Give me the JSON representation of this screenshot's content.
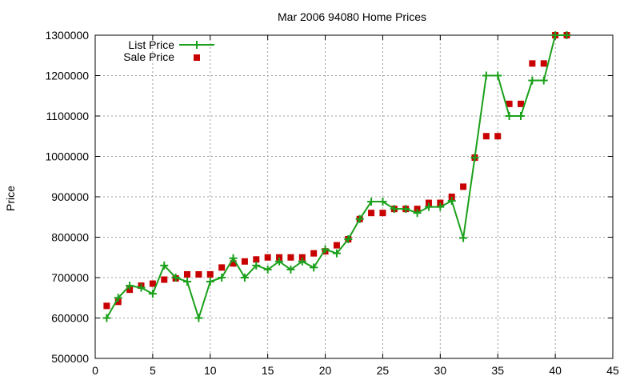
{
  "chart_data": {
    "type": "line",
    "title": "Mar 2006 94080 Home Prices",
    "xlabel": "",
    "ylabel": "Price",
    "xlim": [
      0,
      45
    ],
    "ylim": [
      500000,
      1300000
    ],
    "x_ticks": [
      "0",
      "5",
      "10",
      "15",
      "20",
      "25",
      "30",
      "35",
      "40",
      "45"
    ],
    "y_ticks": [
      "500000",
      "600000",
      "700000",
      "800000",
      "900000",
      "1000000",
      "1100000",
      "1200000",
      "1300000"
    ],
    "grid": true,
    "legend_position": "top-left",
    "series": [
      {
        "name": "List Price",
        "style": "line with plus markers",
        "color": "#1aa01a",
        "x": [
          1,
          2,
          3,
          4,
          5,
          6,
          7,
          8,
          9,
          10,
          11,
          12,
          13,
          14,
          15,
          16,
          17,
          18,
          19,
          20,
          21,
          22,
          23,
          24,
          25,
          26,
          27,
          28,
          29,
          30,
          31,
          32,
          33,
          34,
          35,
          36,
          37,
          38,
          39,
          40,
          41
        ],
        "values": [
          600000,
          650000,
          680000,
          675000,
          660000,
          730000,
          700000,
          690000,
          600000,
          690000,
          700000,
          748000,
          700000,
          730000,
          720000,
          740000,
          720000,
          740000,
          725000,
          770000,
          760000,
          795000,
          845000,
          888000,
          888000,
          870000,
          870000,
          860000,
          875000,
          875000,
          890000,
          798000,
          997000,
          1200000,
          1200000,
          1100000,
          1100000,
          1188000,
          1188000,
          1300000,
          1300000
        ]
      },
      {
        "name": "Sale Price",
        "style": "square markers",
        "color": "#c80000",
        "x": [
          1,
          2,
          3,
          4,
          5,
          6,
          7,
          8,
          9,
          10,
          11,
          12,
          13,
          14,
          15,
          16,
          17,
          18,
          19,
          20,
          21,
          22,
          23,
          24,
          25,
          26,
          27,
          28,
          29,
          30,
          31,
          32,
          33,
          34,
          35,
          36,
          37,
          38,
          39,
          40,
          41
        ],
        "values": [
          630000,
          640000,
          670000,
          680000,
          685000,
          695000,
          698000,
          708000,
          708000,
          708000,
          725000,
          735000,
          740000,
          745000,
          750000,
          750000,
          750000,
          750000,
          760000,
          765000,
          780000,
          795000,
          845000,
          860000,
          860000,
          870000,
          870000,
          870000,
          885000,
          885000,
          900000,
          925000,
          997000,
          1050000,
          1050000,
          1130000,
          1130000,
          1230000,
          1230000,
          1300000,
          1300000
        ]
      }
    ]
  }
}
